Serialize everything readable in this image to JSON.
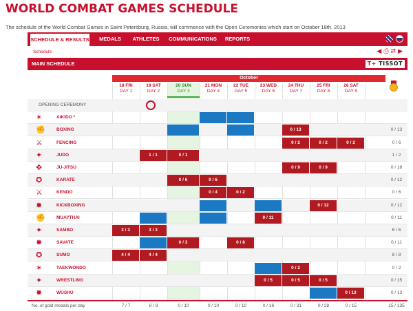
{
  "page": {
    "title": "WORLD COMBAT GAMES SCHEDULE",
    "intro": "The schedule of the World Combat Games in Saint Petersburg, Russia, will commence with the Open Ceremonies which start on October 18th, 2013"
  },
  "nav": {
    "tabs": [
      {
        "label": "SCHEDULE & RESULTS",
        "active": true
      },
      {
        "label": "MEDALS"
      },
      {
        "label": "ATHLETES"
      },
      {
        "label": "COMMUNICATIONS"
      },
      {
        "label": "REPORTS"
      }
    ],
    "languages": [
      "uk-flag-icon",
      "ru-flag-icon"
    ]
  },
  "breadcrumb": "Schedule",
  "tools": [
    "prev-arrow-icon",
    "print-icon",
    "refresh-icon",
    "next-arrow-icon"
  ],
  "subbar": {
    "label": "MAIN SCHEDULE",
    "sponsor": "T+ TISSOT"
  },
  "schedule": {
    "month": "October",
    "days": [
      {
        "date": "18 FRI",
        "day": "DAY 1"
      },
      {
        "date": "19 SAT",
        "day": "DAY 2"
      },
      {
        "date": "20 SUN",
        "day": "DAY 3",
        "today": true
      },
      {
        "date": "21 MON",
        "day": "DAY 4"
      },
      {
        "date": "22 TUE",
        "day": "DAY 5"
      },
      {
        "date": "23 WED",
        "day": "DAY 6"
      },
      {
        "date": "24 THU",
        "day": "DAY 7"
      },
      {
        "date": "25 FRI",
        "day": "DAY 8"
      },
      {
        "date": "26 SAT",
        "day": "DAY 9"
      }
    ],
    "ceremony": "OPENING CEREMONY",
    "sports": [
      {
        "name": "AIKIDO *",
        "cells": [
          null,
          null,
          null,
          "b",
          "b",
          null,
          null,
          null,
          null
        ],
        "total": ""
      },
      {
        "name": "BOXING",
        "cells": [
          null,
          null,
          "b",
          null,
          "b",
          null,
          "0 / 13",
          null,
          null
        ],
        "total": "0 / 13"
      },
      {
        "name": "FENCING",
        "cells": [
          null,
          null,
          null,
          null,
          null,
          null,
          "0 / 2",
          "0 / 2",
          "0 / 2"
        ],
        "total": "0 / 6"
      },
      {
        "name": "JUDO",
        "cells": [
          null,
          "1 / 1",
          "0 / 1",
          null,
          null,
          null,
          null,
          null,
          null
        ],
        "total": "1 / 2"
      },
      {
        "name": "JU-JITSU",
        "cells": [
          null,
          null,
          null,
          null,
          null,
          null,
          "0 / 9",
          "0 / 9",
          null
        ],
        "total": "0 / 18"
      },
      {
        "name": "KARATE",
        "cells": [
          null,
          null,
          "0 / 6",
          "0 / 6",
          null,
          null,
          null,
          null,
          null
        ],
        "total": "0 / 12"
      },
      {
        "name": "KENDO",
        "cells": [
          null,
          null,
          null,
          "0 / 4",
          "0 / 2",
          null,
          null,
          null,
          null
        ],
        "total": "0 / 6"
      },
      {
        "name": "KICKBOXING",
        "cells": [
          null,
          null,
          null,
          "b",
          null,
          "b",
          null,
          "0 / 12",
          null
        ],
        "total": "0 / 12"
      },
      {
        "name": "MUAYTHAI",
        "cells": [
          null,
          "b",
          null,
          "b",
          null,
          "0 / 11",
          null,
          null,
          null
        ],
        "total": "0 / 11"
      },
      {
        "name": "SAMBO",
        "cells": [
          "3 / 3",
          "3 / 3",
          null,
          null,
          null,
          null,
          null,
          null,
          null
        ],
        "total": "6 / 6"
      },
      {
        "name": "SAVATE",
        "cells": [
          null,
          "b",
          "0 / 3",
          null,
          "0 / 8",
          null,
          null,
          null,
          null
        ],
        "total": "0 / 11"
      },
      {
        "name": "SUMO",
        "cells": [
          "4 / 4",
          "4 / 4",
          null,
          null,
          null,
          null,
          null,
          null,
          null
        ],
        "total": "8 / 8"
      },
      {
        "name": "TAEKWONDO",
        "cells": [
          null,
          null,
          null,
          null,
          null,
          "b",
          "0 / 2",
          null,
          null
        ],
        "total": "0 / 2"
      },
      {
        "name": "WRESTLING",
        "cells": [
          null,
          null,
          null,
          null,
          null,
          "0 / 5",
          "0 / 5",
          "0 / 5",
          null
        ],
        "total": "0 / 15"
      },
      {
        "name": "WUSHU",
        "cells": [
          null,
          null,
          null,
          null,
          null,
          null,
          null,
          "b",
          "0 / 13"
        ],
        "total": "0 / 13"
      }
    ],
    "footer": {
      "label": "No. of gold medals per day",
      "values": [
        "7 / 7",
        "8 / 8",
        "0 / 10",
        "0 / 10",
        "0 / 10",
        "0 / 16",
        "0 / 31",
        "0 / 28",
        "0 / 15"
      ],
      "total": "15 / 135"
    }
  },
  "colors": {
    "brand_red": "#c8102e",
    "event_blue": "#1b79c4",
    "medal_red": "#b01a20",
    "today_green": "#3aa33a"
  }
}
